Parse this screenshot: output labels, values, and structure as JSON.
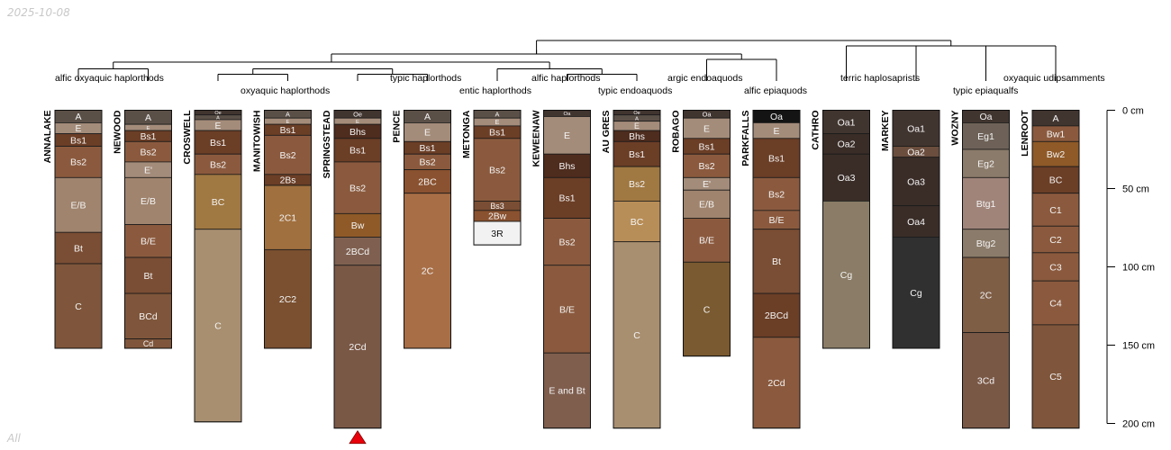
{
  "header": {
    "date": "2025-10-08"
  },
  "footer": {
    "label": "All"
  },
  "chart_data": {
    "type": "soil-profile-sketch",
    "depth_unit": "cm",
    "depth_axis": {
      "range": [
        0,
        200
      ],
      "ticks": [
        0,
        50,
        100,
        150,
        200
      ],
      "tick_labels": [
        "0 cm",
        "50 cm",
        "100 cm",
        "150 cm",
        "200 cm"
      ]
    },
    "taxa_labels": [
      {
        "name": "alfic oxyaquic haplorthods",
        "row": 1
      },
      {
        "name": "oxyaquic haplorthods",
        "row": 2
      },
      {
        "name": "typic haplorthods",
        "row": 1
      },
      {
        "name": "entic haplorthods",
        "row": 2
      },
      {
        "name": "alfic haplorthods",
        "row": 1
      },
      {
        "name": "typic endoaquods",
        "row": 2
      },
      {
        "name": "argic endoaquods",
        "row": 1
      },
      {
        "name": "alfic epiaquods",
        "row": 2
      },
      {
        "name": "terric haplosaprists",
        "row": 1
      },
      {
        "name": "typic epiaqualfs",
        "row": 2
      },
      {
        "name": "oxyaquic udipsamments",
        "row": 1
      }
    ],
    "dendrogram": {
      "leaves": [
        "ANNALAKE",
        "NEWOOD",
        "CROSWELL",
        "MANITOWISH",
        "SPRINGSTEAD",
        "PENCE",
        "METONGA",
        "KEWEENAW",
        "AU GRES",
        "ROBAGO",
        "PARKFALLS",
        "CATHRO",
        "MARKEY",
        "WOZNY",
        "LENROOT"
      ],
      "merges": [
        {
          "left": "ANNALAKE",
          "right": "NEWOOD",
          "height": 0.09
        },
        {
          "left": "CROSWELL",
          "right": "MANITOWISH",
          "height": 0.05
        },
        {
          "left": "SPRINGSTEAD",
          "right": "PENCE",
          "height": 0.05
        },
        {
          "left": "MANITOWISH",
          "right": "PENCE",
          "height": 0.09
        },
        {
          "left": "KEWEENAW",
          "right": "AU GRES",
          "height": 0.05
        },
        {
          "left": "METONGA",
          "right": "KEWEENAW",
          "height": 0.09
        },
        {
          "left": "ANNALAKE",
          "right": "KEWEENAW",
          "height": 0.14
        },
        {
          "left": "ROBAGO",
          "right": "PARKFALLS",
          "height": 0.16
        },
        {
          "left": "AU GRES",
          "right": "ROBAGO",
          "height": 0.2
        },
        {
          "left": "ANNALAKE",
          "right": "ROBAGO",
          "height": 0.23
        },
        {
          "left": "CATHRO",
          "right": "MARKEY",
          "height": 0.26
        },
        {
          "left": "WOZNY",
          "right": "LENROOT",
          "height": 0.26
        },
        {
          "left": "CATHRO",
          "right": "LENROOT",
          "height": 0.26
        },
        {
          "left": "ROBAGO",
          "right": "CATHRO",
          "height": 0.3
        }
      ]
    },
    "profiles": [
      {
        "id": "ANNALAKE",
        "horizons": [
          {
            "name": "A",
            "top": 0,
            "bottom": 8,
            "color": "#5b5048"
          },
          {
            "name": "E",
            "top": 8,
            "bottom": 15,
            "color": "#a48c7a"
          },
          {
            "name": "Bs1",
            "top": 15,
            "bottom": 23,
            "color": "#6b3e26"
          },
          {
            "name": "Bs2",
            "top": 23,
            "bottom": 43,
            "color": "#8b5a3e"
          },
          {
            "name": "E/B",
            "top": 43,
            "bottom": 78,
            "color": "#a0846e"
          },
          {
            "name": "Bt",
            "top": 78,
            "bottom": 98,
            "color": "#7a4e34"
          },
          {
            "name": "C",
            "top": 98,
            "bottom": 152,
            "color": "#7f563b"
          }
        ]
      },
      {
        "id": "NEWOOD",
        "horizons": [
          {
            "name": "A",
            "top": 0,
            "bottom": 9,
            "color": "#5b5048"
          },
          {
            "name": "E",
            "top": 9,
            "bottom": 13,
            "color": "#a48c7a"
          },
          {
            "name": "Bs1",
            "top": 13,
            "bottom": 20,
            "color": "#6b3e26"
          },
          {
            "name": "Bs2",
            "top": 20,
            "bottom": 33,
            "color": "#8b5a3e"
          },
          {
            "name": "E'",
            "top": 33,
            "bottom": 43,
            "color": "#a48c7a"
          },
          {
            "name": "E/B",
            "top": 43,
            "bottom": 73,
            "color": "#a0846e"
          },
          {
            "name": "B/E",
            "top": 73,
            "bottom": 94,
            "color": "#8b5a3e"
          },
          {
            "name": "Bt",
            "top": 94,
            "bottom": 117,
            "color": "#7a4e34"
          },
          {
            "name": "BCd",
            "top": 117,
            "bottom": 146,
            "color": "#7f563b"
          },
          {
            "name": "Cd",
            "top": 146,
            "bottom": 152,
            "color": "#7f563b"
          }
        ]
      },
      {
        "id": "CROSWELL",
        "horizons": [
          {
            "name": "Oe",
            "top": 0,
            "bottom": 3,
            "color": "#413530"
          },
          {
            "name": "A",
            "top": 3,
            "bottom": 6,
            "color": "#5b5048"
          },
          {
            "name": "E",
            "top": 6,
            "bottom": 13,
            "color": "#a48c7a"
          },
          {
            "name": "Bs1",
            "top": 13,
            "bottom": 28,
            "color": "#6b3e26"
          },
          {
            "name": "Bs2",
            "top": 28,
            "bottom": 41,
            "color": "#8b5a3e"
          },
          {
            "name": "BC",
            "top": 41,
            "bottom": 76,
            "color": "#a07842"
          },
          {
            "name": "C",
            "top": 76,
            "bottom": 199,
            "color": "#a88f70"
          }
        ]
      },
      {
        "id": "MANITOWISH",
        "horizons": [
          {
            "name": "A",
            "top": 0,
            "bottom": 5,
            "color": "#5b5048"
          },
          {
            "name": "E",
            "top": 5,
            "bottom": 9,
            "color": "#a48c7a"
          },
          {
            "name": "Bs1",
            "top": 9,
            "bottom": 16,
            "color": "#6b3e26"
          },
          {
            "name": "Bs2",
            "top": 16,
            "bottom": 41,
            "color": "#8b5a3e"
          },
          {
            "name": "2Bs",
            "top": 41,
            "bottom": 48,
            "color": "#6b3e26"
          },
          {
            "name": "2C1",
            "top": 48,
            "bottom": 89,
            "color": "#a0703e"
          },
          {
            "name": "2C2",
            "top": 89,
            "bottom": 152,
            "color": "#7a5030"
          }
        ]
      },
      {
        "id": "SPRINGSTEAD",
        "truncated": true,
        "horizons": [
          {
            "name": "Oe",
            "top": 0,
            "bottom": 5,
            "color": "#413530"
          },
          {
            "name": "E",
            "top": 5,
            "bottom": 9,
            "color": "#a48c7a"
          },
          {
            "name": "Bhs",
            "top": 9,
            "bottom": 18,
            "color": "#4e2c1e"
          },
          {
            "name": "Bs1",
            "top": 18,
            "bottom": 33,
            "color": "#6b3e26"
          },
          {
            "name": "Bs2",
            "top": 33,
            "bottom": 66,
            "color": "#8b5a3e"
          },
          {
            "name": "Bw",
            "top": 66,
            "bottom": 81,
            "color": "#8f5a28"
          },
          {
            "name": "2BCd",
            "top": 81,
            "bottom": 99,
            "color": "#7f6050"
          },
          {
            "name": "2Cd",
            "top": 99,
            "bottom": 203,
            "color": "#7a5846"
          }
        ]
      },
      {
        "id": "PENCE",
        "horizons": [
          {
            "name": "A",
            "top": 0,
            "bottom": 8,
            "color": "#5b5048"
          },
          {
            "name": "E",
            "top": 8,
            "bottom": 20,
            "color": "#a48c7a"
          },
          {
            "name": "Bs1",
            "top": 20,
            "bottom": 28,
            "color": "#6b3e26"
          },
          {
            "name": "Bs2",
            "top": 28,
            "bottom": 38,
            "color": "#8b5a3e"
          },
          {
            "name": "2BC",
            "top": 38,
            "bottom": 53,
            "color": "#8a5230"
          },
          {
            "name": "2C",
            "top": 53,
            "bottom": 152,
            "color": "#a86e46"
          }
        ]
      },
      {
        "id": "METONGA",
        "horizons": [
          {
            "name": "A",
            "top": 0,
            "bottom": 5,
            "color": "#5b5048"
          },
          {
            "name": "E",
            "top": 5,
            "bottom": 10,
            "color": "#a48c7a"
          },
          {
            "name": "Bs1",
            "top": 10,
            "bottom": 18,
            "color": "#6b3e26"
          },
          {
            "name": "Bs2",
            "top": 18,
            "bottom": 58,
            "color": "#8b5a3e"
          },
          {
            "name": "Bs3",
            "top": 58,
            "bottom": 64,
            "color": "#7a4e34"
          },
          {
            "name": "2Bw",
            "top": 64,
            "bottom": 71,
            "color": "#8a5230"
          },
          {
            "name": "3R",
            "top": 71,
            "bottom": 86,
            "color": "#f2f2f2"
          }
        ]
      },
      {
        "id": "KEWEENAW",
        "horizons": [
          {
            "name": "Oa",
            "top": 0,
            "bottom": 4,
            "color": "#413530"
          },
          {
            "name": "E",
            "top": 4,
            "bottom": 28,
            "color": "#a48c7a"
          },
          {
            "name": "Bhs",
            "top": 28,
            "bottom": 43,
            "color": "#4e2c1e"
          },
          {
            "name": "Bs1",
            "top": 43,
            "bottom": 69,
            "color": "#6b3e26"
          },
          {
            "name": "Bs2",
            "top": 69,
            "bottom": 99,
            "color": "#8b5a3e"
          },
          {
            "name": "B/E",
            "top": 99,
            "bottom": 155,
            "color": "#8b5a3e"
          },
          {
            "name": "E and Bt",
            "top": 155,
            "bottom": 203,
            "color": "#7f5e4e"
          }
        ]
      },
      {
        "id": "AU GRES",
        "horizons": [
          {
            "name": "Oe",
            "top": 0,
            "bottom": 3,
            "color": "#413530"
          },
          {
            "name": "A",
            "top": 3,
            "bottom": 7,
            "color": "#5b5048"
          },
          {
            "name": "E",
            "top": 7,
            "bottom": 13,
            "color": "#a48c7a"
          },
          {
            "name": "Bhs",
            "top": 13,
            "bottom": 20,
            "color": "#4e2c1e"
          },
          {
            "name": "Bs1",
            "top": 20,
            "bottom": 36,
            "color": "#6b3e26"
          },
          {
            "name": "Bs2",
            "top": 36,
            "bottom": 58,
            "color": "#a07842"
          },
          {
            "name": "BC",
            "top": 58,
            "bottom": 84,
            "color": "#b88e58"
          },
          {
            "name": "C",
            "top": 84,
            "bottom": 203,
            "color": "#a88f70"
          }
        ]
      },
      {
        "id": "ROBAGO",
        "horizons": [
          {
            "name": "Oa",
            "top": 0,
            "bottom": 5,
            "color": "#413530"
          },
          {
            "name": "E",
            "top": 5,
            "bottom": 18,
            "color": "#a48c7a"
          },
          {
            "name": "Bs1",
            "top": 18,
            "bottom": 28,
            "color": "#6b3e26"
          },
          {
            "name": "Bs2",
            "top": 28,
            "bottom": 43,
            "color": "#8b5a3e"
          },
          {
            "name": "E'",
            "top": 43,
            "bottom": 51,
            "color": "#a48c7a"
          },
          {
            "name": "E/B",
            "top": 51,
            "bottom": 69,
            "color": "#a0846e"
          },
          {
            "name": "B/E",
            "top": 69,
            "bottom": 97,
            "color": "#8b5a3e"
          },
          {
            "name": "C",
            "top": 97,
            "bottom": 157,
            "color": "#7a5a30"
          }
        ]
      },
      {
        "id": "PARKFALLS",
        "horizons": [
          {
            "name": "Oa",
            "top": 0,
            "bottom": 8,
            "color": "#141414"
          },
          {
            "name": "E",
            "top": 8,
            "bottom": 18,
            "color": "#a48c7a"
          },
          {
            "name": "Bs1",
            "top": 18,
            "bottom": 43,
            "color": "#6b3e26"
          },
          {
            "name": "Bs2",
            "top": 43,
            "bottom": 64,
            "color": "#8b5a3e"
          },
          {
            "name": "B/E",
            "top": 64,
            "bottom": 76,
            "color": "#8b5a3e"
          },
          {
            "name": "Bt",
            "top": 76,
            "bottom": 117,
            "color": "#7a4e34"
          },
          {
            "name": "2BCd",
            "top": 117,
            "bottom": 145,
            "color": "#6b3e26"
          },
          {
            "name": "2Cd",
            "top": 145,
            "bottom": 203,
            "color": "#8b5a3e"
          }
        ]
      },
      {
        "id": "CATHRO",
        "horizons": [
          {
            "name": "Oa1",
            "top": 0,
            "bottom": 15,
            "color": "#413530"
          },
          {
            "name": "Oa2",
            "top": 15,
            "bottom": 28,
            "color": "#3a2d28"
          },
          {
            "name": "Oa3",
            "top": 28,
            "bottom": 58,
            "color": "#3a2d28"
          },
          {
            "name": "Cg",
            "top": 58,
            "bottom": 152,
            "color": "#8a7c66"
          }
        ]
      },
      {
        "id": "MARKEY",
        "horizons": [
          {
            "name": "Oa1",
            "top": 0,
            "bottom": 23,
            "color": "#413530"
          },
          {
            "name": "Oa2",
            "top": 23,
            "bottom": 30,
            "color": "#6b4e3e"
          },
          {
            "name": "Oa3",
            "top": 30,
            "bottom": 61,
            "color": "#3a2d28"
          },
          {
            "name": "Oa4",
            "top": 61,
            "bottom": 81,
            "color": "#3a2d28"
          },
          {
            "name": "Cg",
            "top": 81,
            "bottom": 152,
            "color": "#303030"
          }
        ]
      },
      {
        "id": "WOZNY",
        "horizons": [
          {
            "name": "Oa",
            "top": 0,
            "bottom": 8,
            "color": "#413530"
          },
          {
            "name": "Eg1",
            "top": 8,
            "bottom": 25,
            "color": "#6e6258"
          },
          {
            "name": "Eg2",
            "top": 25,
            "bottom": 43,
            "color": "#8b7b6a"
          },
          {
            "name": "Btg1",
            "top": 43,
            "bottom": 76,
            "color": "#a0847a"
          },
          {
            "name": "Btg2",
            "top": 76,
            "bottom": 94,
            "color": "#8b7b6a"
          },
          {
            "name": "2C",
            "top": 94,
            "bottom": 142,
            "color": "#7f5e46"
          },
          {
            "name": "3Cd",
            "top": 142,
            "bottom": 203,
            "color": "#7a5846"
          }
        ]
      },
      {
        "id": "LENROOT",
        "horizons": [
          {
            "name": "A",
            "top": 0,
            "bottom": 10,
            "color": "#413530"
          },
          {
            "name": "Bw1",
            "top": 10,
            "bottom": 20,
            "color": "#8b5a3e"
          },
          {
            "name": "Bw2",
            "top": 20,
            "bottom": 36,
            "color": "#8f5a28"
          },
          {
            "name": "BC",
            "top": 36,
            "bottom": 53,
            "color": "#6b3e26"
          },
          {
            "name": "C1",
            "top": 53,
            "bottom": 74,
            "color": "#8b5a3e"
          },
          {
            "name": "C2",
            "top": 74,
            "bottom": 91,
            "color": "#8b5a3e"
          },
          {
            "name": "C3",
            "top": 91,
            "bottom": 109,
            "color": "#8b5a3e"
          },
          {
            "name": "C4",
            "top": 109,
            "bottom": 137,
            "color": "#8b5a3e"
          },
          {
            "name": "C5",
            "top": 137,
            "bottom": 203,
            "color": "#7f563b"
          }
        ]
      }
    ]
  }
}
